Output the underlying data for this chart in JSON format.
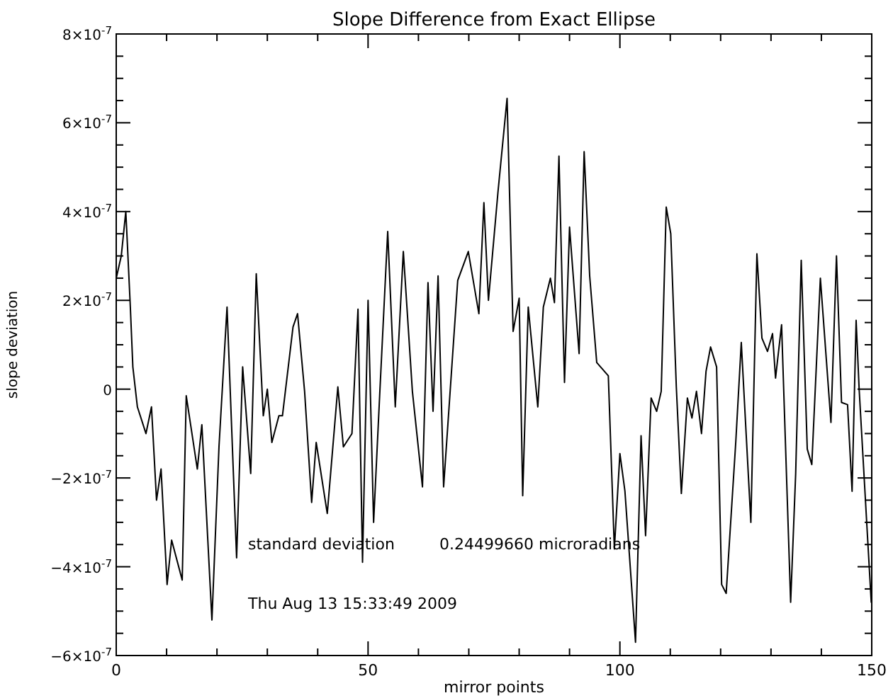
{
  "chart_data": {
    "type": "line",
    "title": "Slope Difference from Exact Ellipse",
    "xlabel": "mirror points",
    "ylabel": "slope deviation",
    "color": "#000000",
    "line_style": "solid",
    "marker": "none",
    "grid": false,
    "x": [
      0,
      1,
      1.9,
      2.2,
      2.8,
      3.3,
      4.2,
      5.9,
      7,
      8,
      8.9,
      10.1,
      11,
      13.1,
      13.9,
      16.1,
      17,
      19,
      20.4,
      22,
      23.9,
      25.1,
      26.7,
      27.8,
      29.2,
      30,
      30.9,
      32.3,
      33,
      35.1,
      36,
      37.4,
      38.8,
      39.7,
      41.9,
      44,
      45.1,
      46.8,
      48,
      48.9,
      50,
      51.1,
      52.3,
      53.9,
      55.4,
      57,
      58.8,
      60.8,
      61.9,
      62.9,
      63.9,
      65,
      67.8,
      69.9,
      72,
      73,
      73.9,
      75.8,
      77.6,
      78.8,
      80,
      80.7,
      81.8,
      83.7,
      84.8,
      86.2,
      87,
      87.9,
      89,
      90,
      91.9,
      92.9,
      94,
      95.4,
      97.7,
      98.9,
      100,
      101,
      103.1,
      104.2,
      105.1,
      106.2,
      107.3,
      108.2,
      109.2,
      110.1,
      111.2,
      112.2,
      113.4,
      114.3,
      115.2,
      116.2,
      117.1,
      118,
      119.2,
      120.2,
      121.1,
      123,
      124.1,
      126,
      127.2,
      128.2,
      129.3,
      130.3,
      130.9,
      132.1,
      133.9,
      134.9,
      136,
      137.2,
      138.1,
      139.8,
      141.9,
      143,
      144,
      145.2,
      146.1,
      146.9,
      147.5,
      149.9
    ],
    "values": [
      2.5e-07,
      3e-07,
      4e-07,
      3.3e-07,
      1.85e-07,
      5e-08,
      -4e-08,
      -1e-07,
      -4e-08,
      -2.5e-07,
      -1.8e-07,
      -4.4e-07,
      -3.4e-07,
      -4.3e-07,
      -1.5e-08,
      -1.8e-07,
      -8e-08,
      -5.2e-07,
      -1.3e-07,
      1.85e-07,
      -3.8e-07,
      5e-08,
      -1.9e-07,
      2.6e-07,
      -6e-08,
      0,
      -1.2e-07,
      -6e-08,
      -6e-08,
      1.4e-07,
      1.7e-07,
      -5e-09,
      -2.55e-07,
      -1.2e-07,
      -2.8e-07,
      5e-09,
      -1.3e-07,
      -1e-07,
      1.8e-07,
      -3.9e-07,
      2e-07,
      -3e-07,
      -1.5e-08,
      3.55e-07,
      -4e-08,
      3.1e-07,
      -5e-09,
      -2.2e-07,
      2.4e-07,
      -5e-08,
      2.55e-07,
      -2.2e-07,
      2.45e-07,
      3.1e-07,
      1.7e-07,
      4.2e-07,
      2e-07,
      4.45e-07,
      6.55e-07,
      1.3e-07,
      2.05e-07,
      -2.4e-07,
      1.85e-07,
      -4e-08,
      1.85e-07,
      2.5e-07,
      1.95e-07,
      5.25e-07,
      1.5e-08,
      3.65e-07,
      8e-08,
      5.35e-07,
      2.55e-07,
      6e-08,
      3e-08,
      -3.6e-07,
      -1.45e-07,
      -2.3e-07,
      -5.7e-07,
      -1.05e-07,
      -3.3e-07,
      -2e-08,
      -5e-08,
      -5e-09,
      4.1e-07,
      3.5e-07,
      5e-09,
      -2.35e-07,
      -2e-08,
      -6.5e-08,
      -5e-09,
      -1e-07,
      4e-08,
      9.5e-08,
      5e-08,
      -4.4e-07,
      -4.6e-07,
      -1.2e-07,
      1.05e-07,
      -3e-07,
      3.05e-07,
      1.15e-07,
      8.5e-08,
      1.25e-07,
      2.5e-08,
      1.45e-07,
      -4.8e-07,
      -1.9e-07,
      2.9e-07,
      -1.35e-07,
      -1.7e-07,
      2.5e-07,
      -7.5e-08,
      3e-07,
      -3e-08,
      -3.5e-08,
      -2.3e-07,
      1.55e-07,
      0,
      -4.8e-07
    ],
    "xlim": [
      0,
      150
    ],
    "ylim": [
      -6e-07,
      8e-07
    ],
    "xticks": [
      0,
      {
        "value": 10,
        "label": null
      },
      {
        "value": 20,
        "label": null
      },
      {
        "value": 30,
        "label": null
      },
      {
        "value": 40,
        "label": null
      },
      50,
      {
        "value": 60,
        "label": null
      },
      {
        "value": 70,
        "label": null
      },
      {
        "value": 80,
        "label": null
      },
      {
        "value": 90,
        "label": null
      },
      100,
      {
        "value": 110,
        "label": null
      },
      {
        "value": 120,
        "label": null
      },
      {
        "value": 130,
        "label": null
      },
      {
        "value": 140,
        "label": null
      },
      150
    ],
    "yticks": [
      {
        "value": -6e-07,
        "label": "−6×10$^{-7}$"
      },
      {
        "value": -5.5e-07,
        "label": null
      },
      {
        "value": -5e-07,
        "label": null
      },
      {
        "value": -4.5e-07,
        "label": null
      },
      {
        "value": -4e-07,
        "label": "−4×10$^{-7}$"
      },
      {
        "value": -3.5e-07,
        "label": null
      },
      {
        "value": -3e-07,
        "label": null
      },
      {
        "value": -2.5e-07,
        "label": null
      },
      {
        "value": -2e-07,
        "label": "−2×10$^{-7}$"
      },
      {
        "value": -1.5e-07,
        "label": null
      },
      {
        "value": -1e-07,
        "label": null
      },
      {
        "value": -5e-08,
        "label": null
      },
      0,
      {
        "value": 5e-08,
        "label": null
      },
      {
        "value": 1e-07,
        "label": null
      },
      {
        "value": 1.5e-07,
        "label": null
      },
      {
        "value": 2e-07,
        "label": "2×10$^{-7}$"
      },
      {
        "value": 2.5e-07,
        "label": null
      },
      {
        "value": 3e-07,
        "label": null
      },
      {
        "value": 3.5e-07,
        "label": null
      },
      {
        "value": 4e-07,
        "label": "4×10$^{-7}$"
      },
      {
        "value": 4.5e-07,
        "label": null
      },
      {
        "value": 5e-07,
        "label": null
      },
      {
        "value": 5.5e-07,
        "label": null
      },
      {
        "value": 6e-07,
        "label": "6×10$^{-7}$"
      },
      {
        "value": 6.5e-07,
        "label": null
      },
      {
        "value": 7e-07,
        "label": null
      },
      {
        "value": 7.5e-07,
        "label": null
      },
      {
        "value": 8e-07,
        "label": "8×10$^{-7}$"
      }
    ],
    "annotations": [
      "standard deviation",
      "0.24499660 microradians",
      "Thu Aug 13 15:33:49 2009"
    ]
  }
}
